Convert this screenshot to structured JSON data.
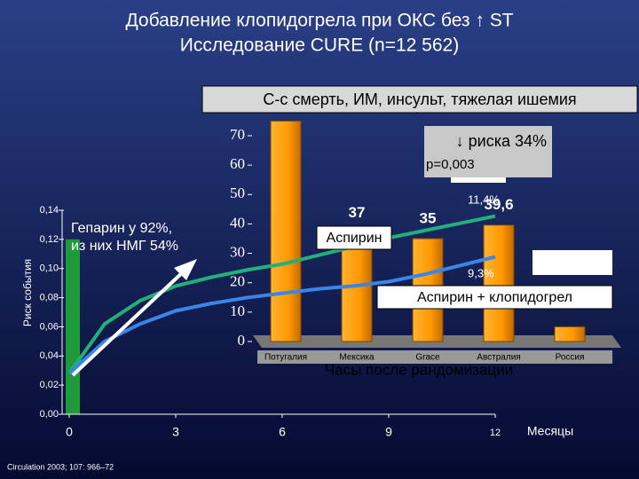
{
  "slide": {
    "title": "Добавление клопидогрела при ОКС без ↑ ST",
    "subtitle": "Исследование CURE (n=12 562)",
    "source": "Circulation 2003; 107: 966–72"
  },
  "chart_data": [
    {
      "type": "line",
      "title": "С-с смерть, ИМ, инсульт, тяжелая ишемия",
      "y_label": "Риск события",
      "x_label": "Месяцы",
      "x": [
        0,
        1,
        2,
        3,
        4,
        5,
        6,
        7,
        8,
        9,
        10,
        11,
        12
      ],
      "xlim": [
        0,
        12
      ],
      "xticks": [
        0,
        3,
        6,
        9,
        12
      ],
      "ylim": [
        0,
        0.14
      ],
      "yticks": [
        {
          "value": 0,
          "label": "0,00"
        },
        {
          "value": 0.02,
          "label": "0,02"
        },
        {
          "value": 0.04,
          "label": "0,04"
        },
        {
          "value": 0.06,
          "label": "0,06"
        },
        {
          "value": 0.08,
          "label": "0,08"
        },
        {
          "value": 0.1,
          "label": "0,10"
        },
        {
          "value": 0.12,
          "label": "0,12"
        },
        {
          "value": 0.14,
          "label": "0,14"
        }
      ],
      "series": [
        {
          "name": "Аспирин",
          "color": "#22b07a",
          "values": [
            0.028,
            0.062,
            0.078,
            0.088,
            0.094,
            0.099,
            0.103,
            0.109,
            0.115,
            0.121,
            0.126,
            0.131,
            0.136
          ]
        },
        {
          "name": "Аспирин + клопидогрел",
          "color": "#3a86e8",
          "values": [
            0.028,
            0.05,
            0.062,
            0.071,
            0.076,
            0.08,
            0.083,
            0.086,
            0.088,
            0.091,
            0.096,
            0.102,
            0.108
          ]
        }
      ],
      "annotations": [
        "Гепарин у 92%,",
        "из них НМГ 54%",
        "↓ риска 34%",
        "p=0,003",
        "11,4%",
        "9,3%"
      ]
    },
    {
      "type": "bar",
      "x_label": "Часы после рандомизации",
      "categories": [
        "Потугалия",
        "Мексика",
        "Grace",
        "Австралия",
        "Россия"
      ],
      "values": [
        75,
        37,
        35,
        39.6,
        5
      ],
      "value_labels": [
        null,
        "37",
        "35",
        "39,6",
        null
      ],
      "color": "#ff9900",
      "ylim": [
        0,
        70
      ],
      "yticks": [
        0,
        10,
        20,
        30,
        40,
        50,
        60,
        70
      ]
    }
  ]
}
